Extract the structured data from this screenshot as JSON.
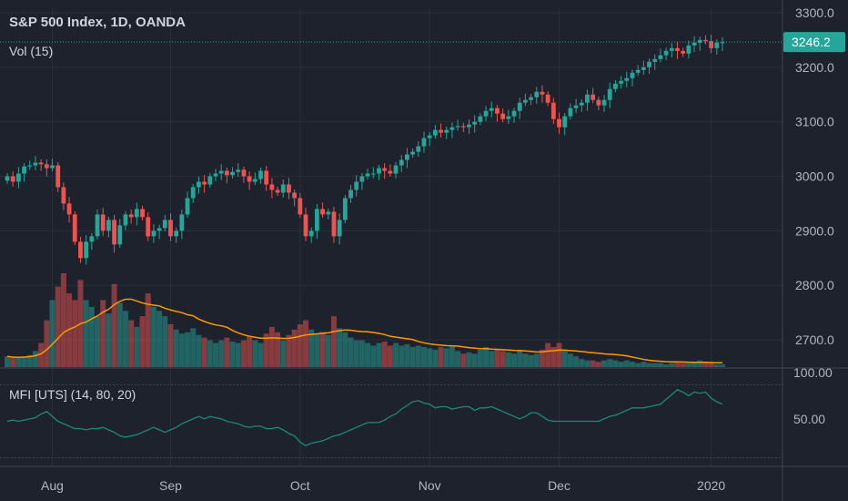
{
  "header": {
    "title": "S&P 500 Index, 1D, OANDA",
    "volume_label": "Vol (15)",
    "mfi_label": "MFI [UTS] (14, 80, 20)"
  },
  "colors": {
    "background": "#1e222d",
    "grid": "#2a2e39",
    "up": "#26a69a",
    "down": "#ef5350",
    "up_volume": "#26a69a",
    "down_volume": "#ef5350",
    "volume_ma": "#ff9800",
    "mfi_line": "#1b8a7a",
    "price_tag": "#26a69a",
    "text": "#d1d4dc",
    "axis_text": "#b2b5be"
  },
  "chart_data": {
    "type": "candlestick",
    "instrument": "S&P 500 Index",
    "timeframe": "1D",
    "source": "OANDA",
    "last_price": "3246.2",
    "price_axis": {
      "min": 2650,
      "max": 3310,
      "ticks": [
        "3300.0",
        "3200.0",
        "3100.0",
        "3000.0",
        "2900.0",
        "2800.0",
        "2700.0"
      ]
    },
    "x_axis_labels": [
      "Aug",
      "Sep",
      "Oct",
      "Nov",
      "Dec",
      "2020"
    ],
    "x_axis_label_index": [
      8,
      29,
      52,
      75,
      98,
      125
    ],
    "close": [
      3000,
      2990,
      3005,
      3018,
      3020,
      3025,
      3022,
      3015,
      3020,
      2980,
      2950,
      2930,
      2880,
      2850,
      2880,
      2890,
      2930,
      2900,
      2920,
      2875,
      2910,
      2930,
      2925,
      2940,
      2925,
      2890,
      2900,
      2905,
      2920,
      2890,
      2900,
      2930,
      2960,
      2980,
      2990,
      2985,
      3000,
      3005,
      3010,
      3002,
      3008,
      3012,
      3000,
      2990,
      2995,
      3010,
      2985,
      2975,
      2970,
      2985,
      2970,
      2960,
      2930,
      2890,
      2900,
      2940,
      2930,
      2935,
      2890,
      2920,
      2960,
      2975,
      2990,
      3000,
      3005,
      3005,
      3015,
      3010,
      3005,
      3020,
      3030,
      3040,
      3045,
      3055,
      3070,
      3075,
      3085,
      3080,
      3085,
      3090,
      3092,
      3090,
      3095,
      3100,
      3110,
      3120,
      3125,
      3115,
      3105,
      3110,
      3120,
      3135,
      3140,
      3145,
      3155,
      3150,
      3135,
      3105,
      3090,
      3110,
      3125,
      3130,
      3135,
      3150,
      3140,
      3130,
      3140,
      3160,
      3170,
      3175,
      3180,
      3190,
      3195,
      3200,
      3210,
      3215,
      3222,
      3230,
      3235,
      3230,
      3225,
      3240,
      3245,
      3250,
      3248,
      3235,
      3245,
      3246
    ],
    "volume": [
      0.8,
      0.7,
      0.7,
      0.8,
      0.9,
      1.2,
      1.8,
      3.5,
      5.0,
      6.0,
      7.0,
      5.5,
      5.0,
      6.5,
      5.0,
      4.5,
      3.8,
      5.0,
      4.0,
      6.2,
      4.8,
      4.2,
      3.5,
      3.0,
      3.8,
      5.5,
      4.5,
      4.2,
      3.8,
      3.2,
      2.8,
      2.5,
      2.6,
      2.9,
      2.4,
      2.2,
      2.0,
      1.8,
      2.0,
      2.2,
      1.9,
      1.8,
      2.0,
      2.3,
      2.0,
      1.8,
      2.5,
      3.0,
      2.6,
      2.0,
      2.4,
      2.8,
      3.2,
      3.5,
      2.8,
      2.5,
      2.6,
      2.4,
      3.8,
      2.9,
      2.6,
      2.2,
      2.0,
      2.0,
      1.8,
      1.6,
      1.8,
      1.9,
      1.6,
      1.8,
      1.6,
      1.7,
      1.5,
      1.6,
      1.5,
      1.4,
      1.3,
      1.5,
      1.4,
      1.6,
      1.2,
      1.0,
      1.1,
      1.0,
      1.3,
      1.5,
      1.2,
      1.3,
      1.2,
      1.1,
      1.0,
      1.2,
      1.0,
      0.9,
      1.0,
      1.3,
      1.8,
      1.5,
      1.8,
      1.2,
      1.0,
      0.8,
      0.6,
      0.5,
      0.5,
      0.4,
      0.5,
      0.6,
      0.5,
      0.4,
      0.5,
      0.4,
      0.3,
      0.4,
      0.3,
      0.3,
      0.3,
      0.2,
      0.3,
      0.4,
      0.3,
      0.3,
      0.4,
      0.5,
      0.4,
      0.3,
      0.2,
      0.2
    ],
    "mfi": {
      "levels": [
        80,
        20
      ],
      "ticks": [
        "100.00",
        "50.00"
      ],
      "values": [
        62,
        63,
        62,
        63,
        64,
        65,
        68,
        70,
        66,
        62,
        60,
        58,
        56,
        56,
        55,
        56,
        56,
        57,
        55,
        53,
        50,
        49,
        50,
        51,
        53,
        55,
        57,
        55,
        53,
        55,
        57,
        60,
        62,
        64,
        66,
        64,
        66,
        65,
        64,
        62,
        61,
        60,
        58,
        57,
        58,
        58,
        56,
        56,
        57,
        55,
        52,
        50,
        45,
        42,
        44,
        45,
        46,
        48,
        50,
        51,
        53,
        55,
        57,
        59,
        61,
        61,
        61,
        63,
        66,
        68,
        72,
        75,
        78,
        79,
        77,
        76,
        73,
        74,
        74,
        72,
        73,
        74,
        74,
        71,
        73,
        73,
        74,
        72,
        70,
        68,
        66,
        64,
        66,
        69,
        69,
        66,
        63,
        62,
        62,
        62,
        62,
        62,
        62,
        62,
        62,
        62,
        64,
        66,
        67,
        69,
        71,
        73,
        73,
        73,
        74,
        75,
        76,
        80,
        84,
        88,
        86,
        83,
        86,
        85,
        86,
        81,
        78,
        76
      ]
    }
  }
}
